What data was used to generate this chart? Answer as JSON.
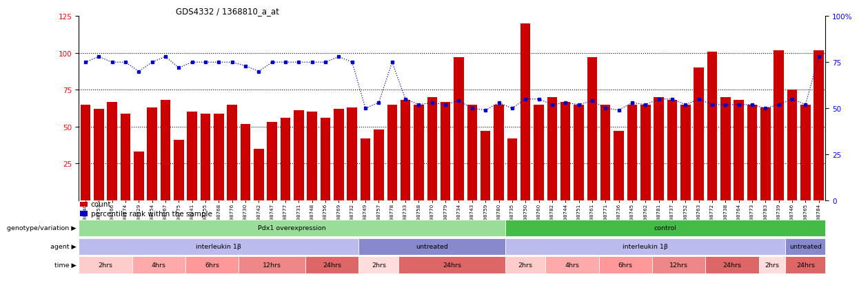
{
  "title": "GDS4332 / 1368810_a_at",
  "bar_values": [
    65,
    62,
    67,
    59,
    33,
    63,
    68,
    41,
    60,
    59,
    59,
    65,
    52,
    35,
    53,
    56,
    61,
    60,
    56,
    62,
    63,
    42,
    48,
    65,
    68,
    65,
    70,
    67,
    97,
    65,
    47,
    65,
    42,
    120,
    65,
    70,
    67,
    65,
    97,
    65,
    47,
    65,
    65,
    70,
    68,
    65,
    90,
    101,
    70,
    68,
    65,
    63,
    102,
    75,
    65,
    102
  ],
  "percentile_values": [
    75,
    78,
    75,
    75,
    70,
    75,
    78,
    72,
    75,
    75,
    75,
    75,
    73,
    70,
    75,
    75,
    75,
    75,
    75,
    78,
    75,
    50,
    53,
    75,
    55,
    52,
    53,
    52,
    54,
    50,
    49,
    53,
    50,
    55,
    55,
    52,
    53,
    52,
    54,
    50,
    49,
    53,
    52,
    55,
    55,
    52,
    55,
    52,
    52,
    52,
    52,
    50,
    52,
    55,
    52,
    78
  ],
  "sample_ids": [
    "GSM998740",
    "GSM998753",
    "GSM998766",
    "GSM998774",
    "GSM998729",
    "GSM998754",
    "GSM998767",
    "GSM998775",
    "GSM998741",
    "GSM998755",
    "GSM998768",
    "GSM998776",
    "GSM998730",
    "GSM998742",
    "GSM998747",
    "GSM998777",
    "GSM998731",
    "GSM998748",
    "GSM998756",
    "GSM998769",
    "GSM998732",
    "GSM998749",
    "GSM998757",
    "GSM998778",
    "GSM998733",
    "GSM998758",
    "GSM998770",
    "GSM998779",
    "GSM998734",
    "GSM998743",
    "GSM998759",
    "GSM998780",
    "GSM998735",
    "GSM998750",
    "GSM998760",
    "GSM998782",
    "GSM998744",
    "GSM998751",
    "GSM998761",
    "GSM998771",
    "GSM998736",
    "GSM998745",
    "GSM998762",
    "GSM998781",
    "GSM998737",
    "GSM998752",
    "GSM998763",
    "GSM998772",
    "GSM998738",
    "GSM998764",
    "GSM998773",
    "GSM998783",
    "GSM998739",
    "GSM998746",
    "GSM998765",
    "GSM998784"
  ],
  "ylim_left": [
    0,
    125
  ],
  "ylim_right": [
    0,
    100
  ],
  "yticks_left": [
    25,
    50,
    75,
    100,
    125
  ],
  "yticks_right": [
    0,
    25,
    50,
    75,
    100
  ],
  "bar_color": "#CC0000",
  "dot_color": "#0000CC",
  "genotype_row": [
    {
      "label": "Pdx1 overexpression",
      "start": 0,
      "end": 32,
      "color": "#99DD99"
    },
    {
      "label": "control",
      "start": 32,
      "end": 56,
      "color": "#44BB44"
    }
  ],
  "agent_row": [
    {
      "label": "interleukin 1β",
      "start": 0,
      "end": 21,
      "color": "#BBBBEE"
    },
    {
      "label": "untreated",
      "start": 21,
      "end": 32,
      "color": "#8888CC"
    },
    {
      "label": "interleukin 1β",
      "start": 32,
      "end": 53,
      "color": "#BBBBEE"
    },
    {
      "label": "untreated",
      "start": 53,
      "end": 56,
      "color": "#8888CC"
    }
  ],
  "time_row": [
    {
      "label": "2hrs",
      "start": 0,
      "end": 4,
      "color": "#FFCCCC"
    },
    {
      "label": "4hrs",
      "start": 4,
      "end": 8,
      "color": "#FFAAAA"
    },
    {
      "label": "6hrs",
      "start": 8,
      "end": 12,
      "color": "#FF9999"
    },
    {
      "label": "12hrs",
      "start": 12,
      "end": 17,
      "color": "#EE8888"
    },
    {
      "label": "24hrs",
      "start": 17,
      "end": 21,
      "color": "#DD6666"
    },
    {
      "label": "2hrs",
      "start": 21,
      "end": 24,
      "color": "#FFDDDD"
    },
    {
      "label": "24hrs",
      "start": 24,
      "end": 32,
      "color": "#DD6666"
    },
    {
      "label": "2hrs",
      "start": 32,
      "end": 35,
      "color": "#FFCCCC"
    },
    {
      "label": "4hrs",
      "start": 35,
      "end": 39,
      "color": "#FFAAAA"
    },
    {
      "label": "6hrs",
      "start": 39,
      "end": 43,
      "color": "#FF9999"
    },
    {
      "label": "12hrs",
      "start": 43,
      "end": 47,
      "color": "#EE8888"
    },
    {
      "label": "24hrs",
      "start": 47,
      "end": 51,
      "color": "#DD6666"
    },
    {
      "label": "2hrs",
      "start": 51,
      "end": 53,
      "color": "#FFDDDD"
    },
    {
      "label": "24hrs",
      "start": 53,
      "end": 56,
      "color": "#DD6666"
    }
  ],
  "left_labels": [
    "genotype/variation",
    "agent",
    "time"
  ],
  "legend_items": [
    {
      "label": "count",
      "color": "#CC0000"
    },
    {
      "label": "percentile rank within the sample",
      "color": "#0000CC"
    }
  ]
}
